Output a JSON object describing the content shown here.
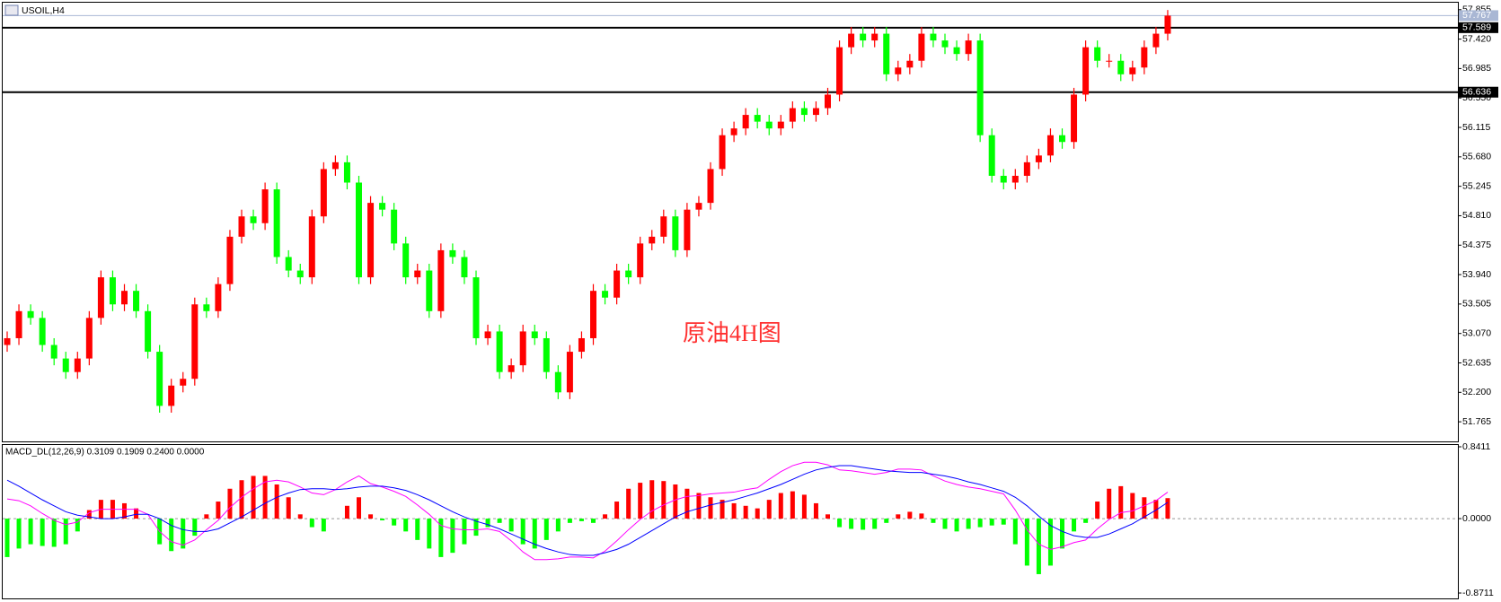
{
  "chart_data": [
    {
      "type": "candlestick",
      "title": "USOIL,H4",
      "annotation": "原油4H图",
      "open": [
        52.9,
        53.0,
        53.4,
        53.3,
        52.9,
        52.7,
        52.5,
        52.7,
        53.3,
        53.9,
        53.5,
        53.7,
        53.4,
        52.8,
        52.0,
        52.3,
        52.4,
        53.5,
        53.4,
        53.8,
        54.5,
        54.8,
        54.7,
        55.2,
        54.2,
        54.0,
        53.9,
        54.8,
        55.5,
        55.6,
        55.3,
        53.9,
        55.0,
        54.9,
        54.4,
        53.9,
        54.0,
        53.4,
        54.3,
        54.2,
        53.9,
        53.0,
        53.1,
        52.5,
        52.6,
        53.1,
        53.0,
        52.5,
        52.2,
        52.8,
        53.0,
        53.7,
        53.6,
        54.0,
        53.9,
        54.4,
        54.5,
        54.8,
        54.3,
        54.9,
        55.0,
        55.5,
        56.0,
        56.1,
        56.3,
        56.2,
        56.1,
        56.2,
        56.4,
        56.3,
        56.4,
        56.6,
        57.3,
        57.5,
        57.4,
        57.5,
        56.9,
        57.0,
        57.1,
        57.5,
        57.4,
        57.3,
        57.2,
        57.4,
        56.0,
        55.4,
        55.3,
        55.4,
        55.6,
        55.7,
        56.0,
        55.9,
        56.6,
        57.3,
        57.1,
        57.1,
        56.9,
        57.0,
        57.3,
        57.5
      ],
      "high": [
        53.1,
        53.5,
        53.5,
        53.4,
        53.0,
        52.8,
        52.8,
        53.4,
        54.0,
        54.0,
        53.8,
        53.8,
        53.5,
        52.9,
        52.4,
        52.5,
        53.6,
        53.6,
        53.9,
        54.6,
        54.9,
        54.9,
        55.3,
        55.3,
        54.3,
        54.1,
        54.9,
        55.6,
        55.7,
        55.7,
        55.4,
        55.1,
        55.1,
        55.0,
        54.5,
        54.1,
        54.1,
        54.4,
        54.4,
        54.3,
        54.0,
        53.2,
        53.2,
        52.7,
        53.2,
        53.2,
        53.1,
        52.6,
        52.9,
        53.1,
        53.8,
        53.8,
        54.1,
        54.1,
        54.5,
        54.6,
        54.9,
        54.9,
        55.0,
        55.1,
        55.6,
        56.1,
        56.2,
        56.4,
        56.4,
        56.3,
        56.3,
        56.5,
        56.5,
        56.5,
        56.7,
        57.4,
        57.6,
        57.6,
        57.6,
        57.6,
        57.1,
        57.2,
        57.6,
        57.6,
        57.5,
        57.4,
        57.5,
        57.5,
        56.1,
        55.5,
        55.5,
        55.7,
        55.8,
        56.1,
        56.1,
        56.7,
        57.4,
        57.4,
        57.2,
        57.2,
        57.1,
        57.4,
        57.6,
        57.85
      ],
      "low": [
        52.8,
        52.9,
        53.2,
        52.8,
        52.6,
        52.4,
        52.4,
        52.6,
        53.2,
        53.4,
        53.4,
        53.3,
        52.7,
        51.9,
        51.9,
        52.2,
        52.3,
        53.3,
        53.3,
        53.7,
        54.4,
        54.6,
        54.6,
        54.1,
        53.9,
        53.8,
        53.8,
        54.7,
        55.4,
        55.2,
        53.8,
        53.8,
        54.8,
        54.3,
        53.8,
        53.8,
        53.3,
        53.3,
        54.1,
        53.8,
        52.9,
        52.9,
        52.4,
        52.4,
        52.5,
        52.9,
        52.4,
        52.1,
        52.1,
        52.7,
        52.9,
        53.5,
        53.5,
        53.8,
        53.8,
        54.3,
        54.4,
        54.2,
        54.2,
        54.8,
        54.9,
        55.4,
        55.9,
        56.0,
        56.1,
        56.0,
        56.0,
        56.1,
        56.2,
        56.2,
        56.3,
        56.5,
        57.2,
        57.3,
        57.3,
        56.8,
        56.8,
        56.9,
        57.0,
        57.3,
        57.2,
        57.1,
        57.1,
        55.9,
        55.3,
        55.2,
        55.2,
        55.3,
        55.5,
        55.6,
        55.8,
        55.8,
        56.5,
        57.0,
        57.0,
        56.8,
        56.8,
        56.9,
        57.2,
        57.4
      ],
      "close": [
        53.0,
        53.4,
        53.3,
        52.9,
        52.7,
        52.5,
        52.7,
        53.3,
        53.9,
        53.5,
        53.7,
        53.4,
        52.8,
        52.0,
        52.3,
        52.4,
        53.5,
        53.4,
        53.8,
        54.5,
        54.8,
        54.7,
        55.2,
        54.2,
        54.0,
        53.9,
        54.8,
        55.5,
        55.6,
        55.3,
        53.9,
        55.0,
        54.9,
        54.4,
        53.9,
        54.0,
        53.4,
        54.3,
        54.2,
        53.9,
        53.0,
        53.1,
        52.5,
        52.6,
        53.1,
        53.0,
        52.5,
        52.2,
        52.8,
        53.0,
        53.7,
        53.6,
        54.0,
        53.9,
        54.4,
        54.5,
        54.8,
        54.3,
        54.9,
        55.0,
        55.5,
        56.0,
        56.1,
        56.3,
        56.2,
        56.1,
        56.2,
        56.4,
        56.3,
        56.4,
        56.6,
        57.3,
        57.5,
        57.4,
        57.5,
        56.9,
        57.0,
        57.1,
        57.5,
        57.4,
        57.3,
        57.2,
        57.4,
        56.0,
        55.4,
        55.3,
        55.4,
        55.6,
        55.7,
        56.0,
        55.9,
        56.6,
        57.3,
        57.1,
        57.1,
        56.9,
        57.0,
        57.3,
        57.5,
        57.767
      ],
      "up_color": "#ff0000",
      "down_color": "#00ff00",
      "ylim": [
        51.475,
        57.945
      ],
      "yticks": [
        57.855,
        {
          "value": 57.42,
          "label": "57.420"
        },
        56.985,
        {
          "value": 56.55,
          "label": "56.550"
        },
        56.115,
        {
          "value": 55.68,
          "label": "55.680"
        },
        55.245,
        {
          "value": 54.81,
          "label": "54.810"
        },
        54.375,
        {
          "value": 53.94,
          "label": "53.940"
        },
        53.505,
        {
          "value": 53.07,
          "label": "53.070"
        },
        52.635,
        {
          "value": 52.2,
          "label": "52.200"
        },
        51.765
      ],
      "hlines": [
        57.589,
        56.636
      ],
      "hline_color": "#000000",
      "last_price": 57.767,
      "last_color": "#a9b7d4"
    },
    {
      "type": "macd",
      "title": "MACD_DL(12,26,9) 0.3109 0.1909 0.2400 0.0000",
      "histogram": [
        -0.45,
        -0.35,
        -0.3,
        -0.32,
        -0.33,
        -0.3,
        -0.15,
        0.1,
        0.22,
        0.22,
        0.18,
        0.12,
        0.0,
        -0.3,
        -0.38,
        -0.35,
        -0.2,
        0.05,
        0.2,
        0.35,
        0.45,
        0.5,
        0.5,
        0.4,
        0.25,
        0.05,
        -0.1,
        -0.15,
        0.0,
        0.15,
        0.25,
        0.05,
        -0.02,
        -0.08,
        -0.15,
        -0.25,
        -0.35,
        -0.45,
        -0.4,
        -0.3,
        -0.2,
        -0.1,
        -0.05,
        -0.15,
        -0.3,
        -0.35,
        -0.25,
        -0.15,
        -0.05,
        -0.03,
        -0.05,
        0.05,
        0.2,
        0.35,
        0.42,
        0.45,
        0.44,
        0.4,
        0.35,
        0.3,
        0.25,
        0.22,
        0.18,
        0.15,
        0.12,
        0.22,
        0.3,
        0.32,
        0.28,
        0.18,
        0.05,
        -0.1,
        -0.12,
        -0.13,
        -0.12,
        -0.05,
        0.05,
        0.08,
        0.06,
        -0.05,
        -0.12,
        -0.15,
        -0.12,
        -0.1,
        -0.08,
        -0.07,
        -0.3,
        -0.55,
        -0.65,
        -0.55,
        -0.35,
        -0.15,
        -0.05,
        0.2,
        0.35,
        0.38,
        0.3,
        0.25,
        0.22,
        0.24
      ],
      "macd_line": [
        0.23,
        0.21,
        0.15,
        0.06,
        -0.02,
        -0.07,
        -0.04,
        0.07,
        0.11,
        0.11,
        0.11,
        0.11,
        0.05,
        -0.15,
        -0.27,
        -0.31,
        -0.25,
        -0.13,
        -0.02,
        0.13,
        0.25,
        0.35,
        0.43,
        0.45,
        0.43,
        0.37,
        0.3,
        0.28,
        0.34,
        0.43,
        0.5,
        0.41,
        0.37,
        0.32,
        0.26,
        0.16,
        0.05,
        -0.08,
        -0.12,
        -0.13,
        -0.13,
        -0.12,
        -0.15,
        -0.26,
        -0.39,
        -0.48,
        -0.48,
        -0.47,
        -0.45,
        -0.45,
        -0.46,
        -0.38,
        -0.26,
        -0.13,
        -0.01,
        0.09,
        0.16,
        0.22,
        0.26,
        0.27,
        0.29,
        0.3,
        0.31,
        0.34,
        0.36,
        0.46,
        0.55,
        0.62,
        0.66,
        0.66,
        0.63,
        0.57,
        0.56,
        0.54,
        0.52,
        0.54,
        0.58,
        0.58,
        0.57,
        0.5,
        0.44,
        0.4,
        0.37,
        0.35,
        0.32,
        0.29,
        0.1,
        -0.13,
        -0.3,
        -0.36,
        -0.33,
        -0.28,
        -0.25,
        -0.12,
        -0.01,
        0.07,
        0.09,
        0.15,
        0.21,
        0.31
      ],
      "signal_line": [
        0.45,
        0.38,
        0.3,
        0.22,
        0.15,
        0.08,
        0.04,
        0.02,
        0.0,
        0.0,
        0.02,
        0.05,
        0.05,
        0.0,
        -0.08,
        -0.13,
        -0.15,
        -0.15,
        -0.12,
        -0.05,
        0.02,
        0.1,
        0.18,
        0.25,
        0.3,
        0.34,
        0.35,
        0.35,
        0.34,
        0.35,
        0.37,
        0.38,
        0.38,
        0.36,
        0.33,
        0.28,
        0.22,
        0.15,
        0.08,
        0.02,
        -0.03,
        -0.07,
        -0.12,
        -0.18,
        -0.24,
        -0.3,
        -0.35,
        -0.39,
        -0.42,
        -0.43,
        -0.43,
        -0.4,
        -0.36,
        -0.3,
        -0.22,
        -0.14,
        -0.06,
        0.02,
        0.08,
        0.12,
        0.16,
        0.19,
        0.22,
        0.26,
        0.3,
        0.35,
        0.4,
        0.46,
        0.52,
        0.57,
        0.6,
        0.62,
        0.62,
        0.6,
        0.58,
        0.56,
        0.55,
        0.54,
        0.54,
        0.52,
        0.5,
        0.47,
        0.43,
        0.4,
        0.36,
        0.32,
        0.25,
        0.15,
        0.03,
        -0.08,
        -0.15,
        -0.2,
        -0.22,
        -0.22,
        -0.18,
        -0.12,
        -0.06,
        0.02,
        0.1,
        0.19
      ],
      "up_color": "#ff0000",
      "down_color": "#00ff00",
      "macd_color": "#ff00ff",
      "signal_color": "#0000ff",
      "ylim": [
        -0.8711,
        0.8411
      ],
      "yticks": [
        0.8411,
        {
          "value": 0,
          "label": "0.0000"
        },
        -0.8711
      ]
    }
  ]
}
